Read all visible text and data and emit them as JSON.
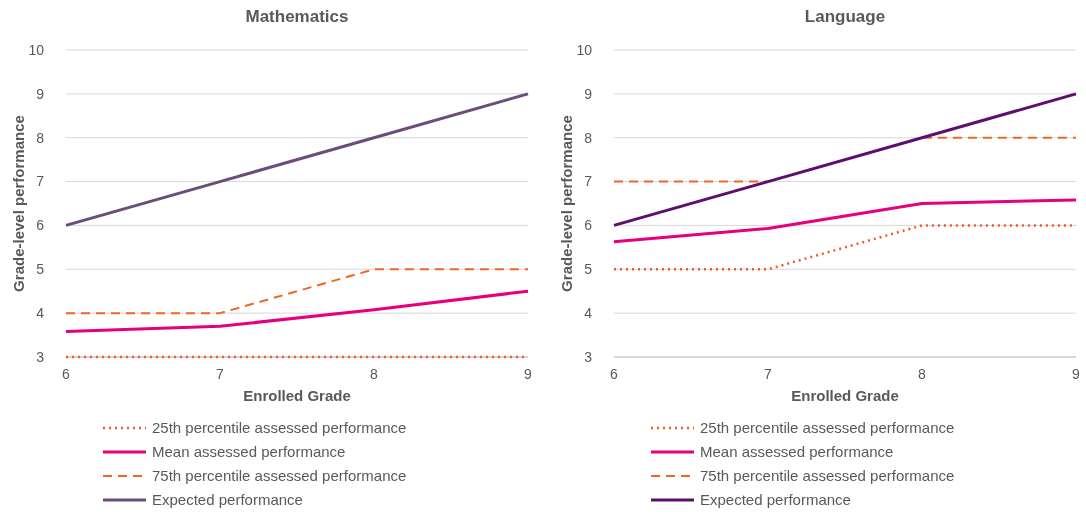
{
  "chart_data": [
    {
      "type": "line",
      "title": "Mathematics",
      "xlabel": "Enrolled Grade",
      "ylabel": "Grade-level performance",
      "x": [
        6,
        7,
        8,
        9
      ],
      "xlim": [
        6,
        9
      ],
      "xticks": [
        6,
        7,
        8,
        9
      ],
      "ylim": [
        3,
        10
      ],
      "yticks": [
        3,
        4,
        5,
        6,
        7,
        8,
        9,
        10
      ],
      "grid": "y",
      "legend": "bottom",
      "marker": "none",
      "series": [
        {
          "name": "25th percentile assessed performance",
          "color": "#f05a28",
          "line_style": "dotted",
          "values": [
            3,
            3,
            3,
            3
          ]
        },
        {
          "name": "Mean assessed performance",
          "color": "#e6007e",
          "line_style": "solid",
          "values": [
            3.58,
            3.7,
            4.08,
            4.5
          ]
        },
        {
          "name": "75th percentile assessed performance",
          "color": "#f26522",
          "line_style": "dashed",
          "values": [
            4,
            4,
            5,
            5
          ]
        },
        {
          "name": "Expected performance",
          "color": "#6b4c7a",
          "line_style": "solid",
          "values": [
            6,
            7,
            8,
            9
          ]
        }
      ]
    },
    {
      "type": "line",
      "title": "Language",
      "xlabel": "Enrolled Grade",
      "ylabel": "Grade-level performance",
      "x": [
        6,
        7,
        8,
        9
      ],
      "xlim": [
        6,
        9
      ],
      "xticks": [
        6,
        7,
        8,
        9
      ],
      "ylim": [
        3,
        10
      ],
      "yticks": [
        3,
        4,
        5,
        6,
        7,
        8,
        9,
        10
      ],
      "grid": "y",
      "legend": "bottom",
      "marker": "none",
      "series": [
        {
          "name": "25th percentile assessed performance",
          "color": "#f05a28",
          "line_style": "dotted",
          "values": [
            5,
            5,
            6,
            6
          ]
        },
        {
          "name": "Mean assessed performance",
          "color": "#e6007e",
          "line_style": "solid",
          "values": [
            5.63,
            5.93,
            6.5,
            6.58
          ]
        },
        {
          "name": "75th percentile assessed performance",
          "color": "#f26522",
          "line_style": "dashed",
          "values": [
            7,
            7,
            8,
            8
          ]
        },
        {
          "name": "Expected performance",
          "color": "#5c0f6e",
          "line_style": "solid",
          "values": [
            6,
            7,
            8,
            9
          ]
        }
      ]
    }
  ]
}
